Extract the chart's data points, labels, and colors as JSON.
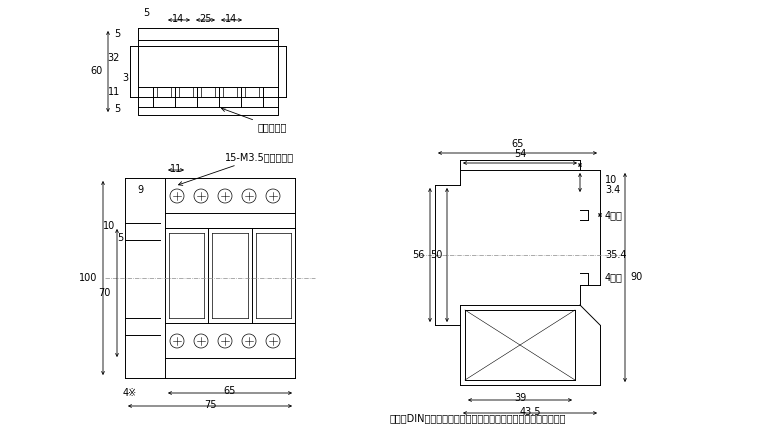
{
  "bg_color": "#ffffff",
  "line_color": "#000000",
  "dim_color": "#000000",
  "font_size_dim": 7,
  "font_size_label": 7,
  "font_size_note": 7,
  "note_text": "注．　DINレール取りつけスライダを挿入した場合の寸法です。",
  "label_tandacover": "端子カバー",
  "label_screw": "15-M3.5セムスねじ"
}
